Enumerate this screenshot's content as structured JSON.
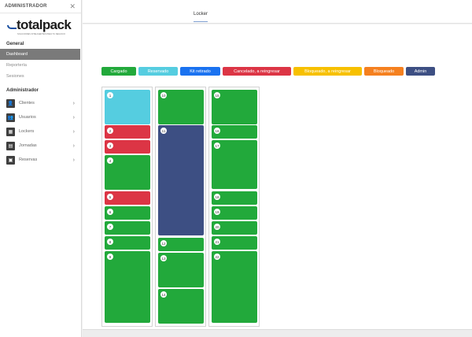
{
  "sidebar": {
    "title": "ADMINISTRADOR",
    "close_glyph": "✕",
    "logo_text": "totalpack",
    "logo_tagline": "SOLUCIONES INTELIGENTES PARA TU NEGOCIO",
    "general_label": "General",
    "general_items": [
      {
        "label": "Dashboard",
        "active": true
      },
      {
        "label": "Reportería",
        "active": false
      },
      {
        "label": "Sesiones",
        "active": false
      }
    ],
    "admin_label": "Administrador",
    "admin_items": [
      {
        "label": "Clientes",
        "icon": "user-icon",
        "glyph": "👤"
      },
      {
        "label": "Usuarios",
        "icon": "users-icon",
        "glyph": "👥"
      },
      {
        "label": "Lockers",
        "icon": "locker-icon",
        "glyph": "▦"
      },
      {
        "label": "Jornadas",
        "icon": "calendar-icon",
        "glyph": "▤"
      },
      {
        "label": "Reservas",
        "icon": "bookmark-icon",
        "glyph": "▣"
      }
    ]
  },
  "header": {
    "tab": "Locker"
  },
  "colors": {
    "cargado": "#22a93b",
    "reservado": "#55cde0",
    "kit_retirado": "#1a72f0",
    "cancelado": "#dc3545",
    "bloqueado": "#f7c000",
    "cerrado": "#f5801f",
    "admin": "#3d4f83"
  },
  "legend": [
    {
      "label": "Cargado",
      "color": "#22a93b"
    },
    {
      "label": "Reservado",
      "color": "#55cde0"
    },
    {
      "label": "Kit retirado",
      "color": "#1a72f0"
    },
    {
      "label": "Cancelado, a reingresar",
      "color": "#dc3545"
    },
    {
      "label": "Bloqueado, a reingresar",
      "color": "#f7c000"
    },
    {
      "label": "Bloqueado",
      "color": "#f5801f"
    },
    {
      "label": "Admin",
      "color": "#3d4f83"
    }
  ],
  "columns": [
    {
      "cells": [
        {
          "n": "1",
          "state": "reservado"
        },
        {
          "n": "2",
          "state": "cancelado"
        },
        {
          "n": "3",
          "state": "cancelado"
        },
        {
          "n": "4",
          "state": "cargado"
        },
        {
          "n": "5",
          "state": "cancelado"
        },
        {
          "n": "6",
          "state": "cargado"
        },
        {
          "n": "7",
          "state": "cargado"
        },
        {
          "n": "8",
          "state": "cargado"
        },
        {
          "n": "9",
          "state": "cargado"
        }
      ]
    },
    {
      "cells": [
        {
          "n": "10",
          "state": "cargado"
        },
        {
          "n": "11",
          "state": "admin"
        },
        {
          "n": "12",
          "state": "cargado"
        },
        {
          "n": "13",
          "state": "cargado"
        },
        {
          "n": "14",
          "state": "cargado"
        }
      ]
    },
    {
      "cells": [
        {
          "n": "15",
          "state": "cargado"
        },
        {
          "n": "16",
          "state": "cargado"
        },
        {
          "n": "17",
          "state": "cargado"
        },
        {
          "n": "18",
          "state": "cargado"
        },
        {
          "n": "19",
          "state": "cargado"
        },
        {
          "n": "20",
          "state": "cargado"
        },
        {
          "n": "21",
          "state": "cargado"
        },
        {
          "n": "22",
          "state": "cargado"
        }
      ]
    }
  ]
}
